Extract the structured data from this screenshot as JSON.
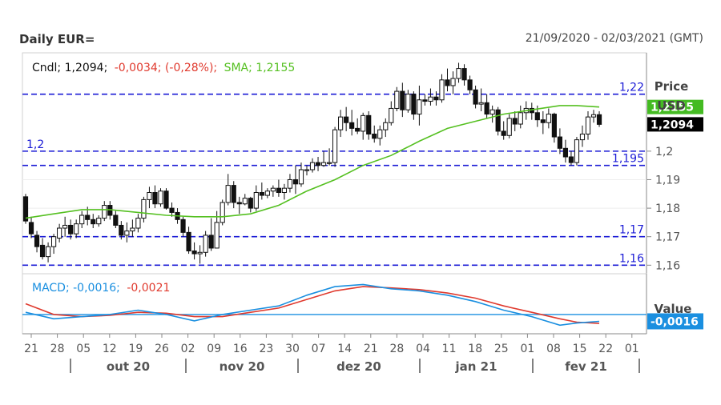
{
  "header": {
    "title": "Daily EUR=",
    "range": "21/09/2020 - 02/03/2021 (GMT)"
  },
  "chart_data": [
    {
      "type": "candlestick",
      "legend": {
        "cndl_label": "Cndl; 1,2094;",
        "cndl_change": "-0,0034; (-0,28%);",
        "sma_label": "SMA; 1,2155"
      },
      "axis_title": [
        "Price",
        "USD"
      ],
      "yticks": [
        "1,16",
        "1,17",
        "1,18",
        "1,19",
        "1,2"
      ],
      "ylim": [
        1.157,
        1.2345
      ],
      "level_lines": [
        {
          "value": 1.22,
          "label": "1,22"
        },
        {
          "value": 1.2,
          "label": "1,2"
        },
        {
          "value": 1.195,
          "label": "1,195"
        },
        {
          "value": 1.17,
          "label": "1,17"
        },
        {
          "value": 1.16,
          "label": "1,16"
        }
      ],
      "badges": [
        {
          "value": 1.2155,
          "label": "1,2155",
          "color": "#44bb22"
        },
        {
          "value": 1.2094,
          "label": "1,2094",
          "color": "#000000"
        }
      ],
      "candles": [
        [
          1.184,
          1.185,
          1.1745,
          1.1755
        ],
        [
          1.175,
          1.177,
          1.1695,
          1.171
        ],
        [
          1.1705,
          1.172,
          1.1645,
          1.1665
        ],
        [
          1.167,
          1.1695,
          1.162,
          1.163
        ],
        [
          1.163,
          1.168,
          1.161,
          1.1665
        ],
        [
          1.1665,
          1.171,
          1.164,
          1.17
        ],
        [
          1.1695,
          1.1745,
          1.168,
          1.173
        ],
        [
          1.173,
          1.177,
          1.17,
          1.174
        ],
        [
          1.174,
          1.176,
          1.169,
          1.171
        ],
        [
          1.171,
          1.176,
          1.1695,
          1.1745
        ],
        [
          1.1745,
          1.179,
          1.173,
          1.1775
        ],
        [
          1.1775,
          1.1805,
          1.174,
          1.176
        ],
        [
          1.176,
          1.178,
          1.173,
          1.1745
        ],
        [
          1.1745,
          1.1775,
          1.1735,
          1.1765
        ],
        [
          1.1765,
          1.1825,
          1.1755,
          1.181
        ],
        [
          1.181,
          1.1825,
          1.176,
          1.1775
        ],
        [
          1.1775,
          1.179,
          1.173,
          1.174
        ],
        [
          1.174,
          1.1755,
          1.169,
          1.1705
        ],
        [
          1.1705,
          1.175,
          1.168,
          1.172
        ],
        [
          1.172,
          1.176,
          1.17,
          1.173
        ],
        [
          1.173,
          1.178,
          1.1715,
          1.1765
        ],
        [
          1.1765,
          1.184,
          1.175,
          1.183
        ],
        [
          1.183,
          1.1875,
          1.18,
          1.1855
        ],
        [
          1.1855,
          1.188,
          1.18,
          1.1815
        ],
        [
          1.1815,
          1.187,
          1.1805,
          1.186
        ],
        [
          1.186,
          1.187,
          1.1795,
          1.18
        ],
        [
          1.18,
          1.182,
          1.177,
          1.1785
        ],
        [
          1.1785,
          1.18,
          1.1745,
          1.176
        ],
        [
          1.176,
          1.177,
          1.17,
          1.1715
        ],
        [
          1.1715,
          1.1735,
          1.164,
          1.165
        ],
        [
          1.165,
          1.168,
          1.162,
          1.164
        ],
        [
          1.164,
          1.167,
          1.1605,
          1.1645
        ],
        [
          1.1645,
          1.172,
          1.163,
          1.1705
        ],
        [
          1.1705,
          1.1765,
          1.165,
          1.166
        ],
        [
          1.166,
          1.179,
          1.166,
          1.175
        ],
        [
          1.175,
          1.183,
          1.174,
          1.182
        ],
        [
          1.182,
          1.192,
          1.181,
          1.188
        ],
        [
          1.188,
          1.1895,
          1.18,
          1.182
        ],
        [
          1.182,
          1.184,
          1.178,
          1.1815
        ],
        [
          1.1815,
          1.185,
          1.181,
          1.1835
        ],
        [
          1.1835,
          1.184,
          1.1785,
          1.18
        ],
        [
          1.18,
          1.188,
          1.179,
          1.1855
        ],
        [
          1.1855,
          1.189,
          1.183,
          1.1845
        ],
        [
          1.1845,
          1.187,
          1.1835,
          1.186
        ],
        [
          1.186,
          1.188,
          1.184,
          1.187
        ],
        [
          1.187,
          1.19,
          1.184,
          1.1855
        ],
        [
          1.1855,
          1.1885,
          1.183,
          1.187
        ],
        [
          1.187,
          1.192,
          1.1855,
          1.19
        ],
        [
          1.19,
          1.195,
          1.185,
          1.1885
        ],
        [
          1.1885,
          1.196,
          1.1875,
          1.1935
        ],
        [
          1.1935,
          1.195,
          1.1915,
          1.1935
        ],
        [
          1.1935,
          1.1975,
          1.1925,
          1.196
        ],
        [
          1.196,
          1.198,
          1.193,
          1.195
        ],
        [
          1.195,
          1.2,
          1.1945,
          1.196
        ],
        [
          1.196,
          1.201,
          1.195,
          1.196
        ],
        [
          1.196,
          1.2085,
          1.1945,
          1.2075
        ],
        [
          1.2075,
          1.2145,
          1.205,
          1.212
        ],
        [
          1.212,
          1.2155,
          1.207,
          1.21
        ],
        [
          1.21,
          1.2145,
          1.2055,
          1.208
        ],
        [
          1.208,
          1.2115,
          1.206,
          1.207
        ],
        [
          1.207,
          1.2135,
          1.204,
          1.2125
        ],
        [
          1.2125,
          1.214,
          1.204,
          1.206
        ],
        [
          1.206,
          1.209,
          1.203,
          1.2045
        ],
        [
          1.2045,
          1.209,
          1.202,
          1.2075
        ],
        [
          1.2075,
          1.2115,
          1.205,
          1.21
        ],
        [
          1.21,
          1.2175,
          1.209,
          1.215
        ],
        [
          1.215,
          1.2225,
          1.214,
          1.221
        ],
        [
          1.221,
          1.224,
          1.212,
          1.2145
        ],
        [
          1.2145,
          1.2215,
          1.2135,
          1.22
        ],
        [
          1.22,
          1.221,
          1.211,
          1.213
        ],
        [
          1.213,
          1.223,
          1.209,
          1.218
        ],
        [
          1.218,
          1.22,
          1.216,
          1.2175
        ],
        [
          1.2175,
          1.222,
          1.216,
          1.219
        ],
        [
          1.219,
          1.221,
          1.216,
          1.218
        ],
        [
          1.218,
          1.227,
          1.217,
          1.225
        ],
        [
          1.225,
          1.229,
          1.221,
          1.223
        ],
        [
          1.223,
          1.228,
          1.22,
          1.2255
        ],
        [
          1.2255,
          1.231,
          1.224,
          1.229
        ],
        [
          1.229,
          1.2305,
          1.223,
          1.225
        ],
        [
          1.225,
          1.2265,
          1.22,
          1.2215
        ],
        [
          1.2215,
          1.223,
          1.215,
          1.2165
        ],
        [
          1.2165,
          1.222,
          1.214,
          1.217
        ],
        [
          1.217,
          1.22,
          1.2115,
          1.213
        ],
        [
          1.213,
          1.216,
          1.21,
          1.2145
        ],
        [
          1.2145,
          1.2155,
          1.2055,
          1.207
        ],
        [
          1.207,
          1.2105,
          1.204,
          1.2055
        ],
        [
          1.2055,
          1.213,
          1.2045,
          1.2115
        ],
        [
          1.2115,
          1.214,
          1.207,
          1.2095
        ],
        [
          1.2095,
          1.216,
          1.208,
          1.2135
        ],
        [
          1.2135,
          1.2175,
          1.211,
          1.215
        ],
        [
          1.215,
          1.217,
          1.211,
          1.2135
        ],
        [
          1.2135,
          1.216,
          1.2085,
          1.211
        ],
        [
          1.211,
          1.214,
          1.206,
          1.21
        ],
        [
          1.21,
          1.215,
          1.208,
          1.213
        ],
        [
          1.213,
          1.2135,
          1.203,
          1.205
        ],
        [
          1.205,
          1.208,
          1.199,
          1.201
        ],
        [
          1.201,
          1.204,
          1.196,
          1.198
        ],
        [
          1.198,
          1.2,
          1.195,
          1.196
        ],
        [
          1.196,
          1.205,
          1.195,
          1.204
        ],
        [
          1.204,
          1.209,
          1.2015,
          1.206
        ],
        [
          1.206,
          1.214,
          1.204,
          1.212
        ],
        [
          1.212,
          1.2145,
          1.21,
          1.2128
        ],
        [
          1.2128,
          1.214,
          1.2085,
          1.2094
        ]
      ],
      "sma": {
        "x": [
          0,
          5,
          10,
          15,
          20,
          25,
          30,
          35,
          40,
          45,
          50,
          55,
          60,
          65,
          70,
          75,
          80,
          85,
          90,
          95,
          98,
          102
        ],
        "y": [
          1.1765,
          1.178,
          1.1795,
          1.1795,
          1.1785,
          1.1775,
          1.177,
          1.177,
          1.178,
          1.181,
          1.186,
          1.19,
          1.195,
          1.1985,
          1.2035,
          1.208,
          1.2105,
          1.213,
          1.2145,
          1.216,
          1.216,
          1.2155
        ]
      },
      "x_axis": {
        "day_ticks": [
          "21",
          "28",
          "05",
          "12",
          "19",
          "26",
          "02",
          "09",
          "16",
          "23",
          "30",
          "07",
          "14",
          "21",
          "28",
          "04",
          "11",
          "18",
          "25",
          "01",
          "08",
          "15",
          "22",
          "01"
        ],
        "months": [
          "out 20",
          "nov 20",
          "dez 20",
          "jan 21",
          "fev 21"
        ]
      }
    },
    {
      "type": "line",
      "legend": {
        "title": "MACD; -0,0016;",
        "signal": "-0,0021"
      },
      "axis_title": "Value",
      "badge": {
        "value": -0.0016,
        "label": "-0,0016",
        "color": "#1a8fe0"
      },
      "ylim": [
        -0.0045,
        0.0095
      ],
      "zero_value": 0,
      "series": [
        {
          "key": "macd",
          "color": "#1a8fe0",
          "x": [
            0,
            5,
            10,
            15,
            20,
            25,
            30,
            35,
            40,
            45,
            50,
            55,
            60,
            65,
            70,
            75,
            80,
            85,
            90,
            95,
            98,
            102
          ],
          "y": [
            0.0005,
            -0.001,
            -0.0005,
            0.0,
            0.001,
            0.0,
            -0.0015,
            0.0,
            0.001,
            0.002,
            0.0045,
            0.0065,
            0.007,
            0.006,
            0.0055,
            0.0045,
            0.003,
            0.001,
            -0.0005,
            -0.0025,
            -0.002,
            -0.0016
          ]
        },
        {
          "key": "signal",
          "color": "#e03a2e",
          "x": [
            0,
            5,
            10,
            15,
            20,
            25,
            30,
            35,
            40,
            45,
            50,
            55,
            60,
            65,
            70,
            75,
            80,
            85,
            90,
            95,
            98,
            102
          ],
          "y": [
            0.0025,
            0.0,
            -0.0005,
            -0.0002,
            0.0005,
            0.0003,
            -0.0005,
            -0.0005,
            0.0005,
            0.0015,
            0.0035,
            0.0055,
            0.0065,
            0.0062,
            0.0058,
            0.005,
            0.0038,
            0.002,
            0.0005,
            -0.001,
            -0.0018,
            -0.0021
          ]
        }
      ]
    }
  ]
}
